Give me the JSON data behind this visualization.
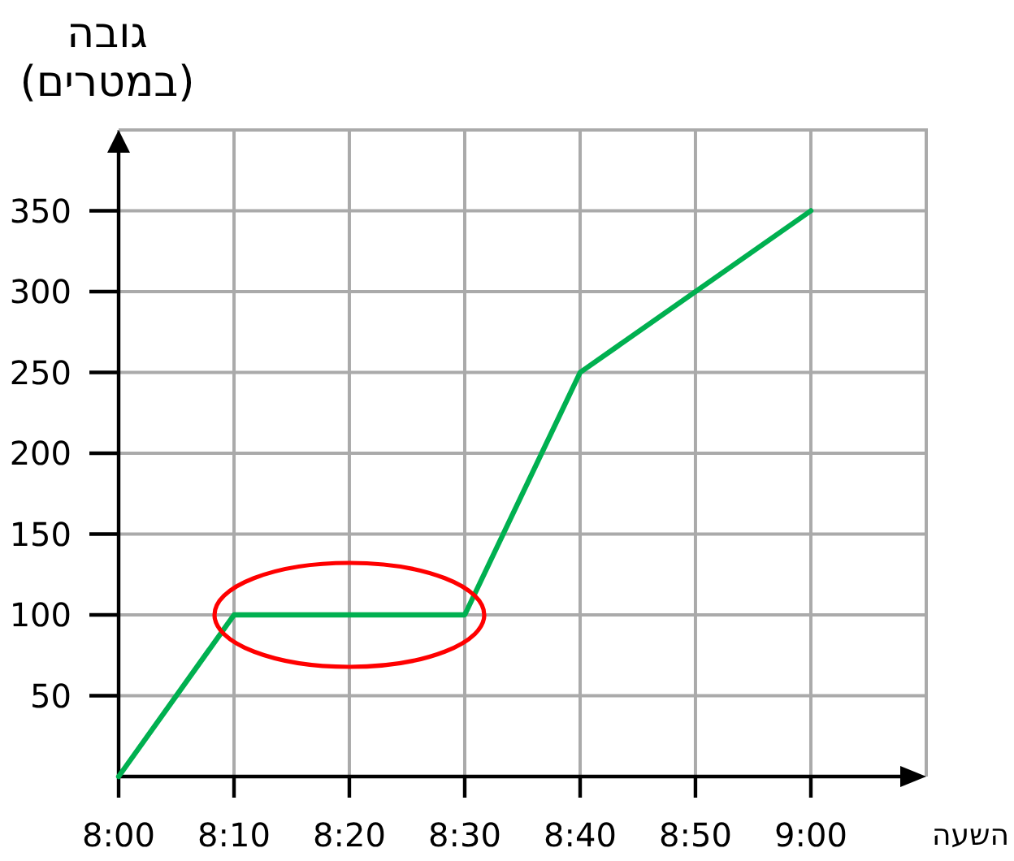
{
  "chart_data": {
    "type": "line",
    "xlabel": "השעה",
    "ylabel": "גובה (במטרים)",
    "x": [
      8,
      8.1667,
      8.5,
      8.6667,
      9
    ],
    "values": [
      0,
      100,
      100,
      250,
      350
    ],
    "color": "#00b050",
    "xlim": [
      8,
      9.1667
    ],
    "ylim": [
      0,
      400
    ],
    "xticks": [
      {
        "value": 8,
        "label": "8:00"
      },
      {
        "value": 8.1667,
        "label": "8:10"
      },
      {
        "value": 8.3333,
        "label": "8:20"
      },
      {
        "value": 8.5,
        "label": "8:30"
      },
      {
        "value": 8.6667,
        "label": "8:40"
      },
      {
        "value": 8.8333,
        "label": "8:50"
      },
      {
        "value": 9,
        "label": "9:00"
      }
    ],
    "yticks": [
      50,
      100,
      150,
      200,
      250,
      300,
      350
    ],
    "grid": true
  }
}
